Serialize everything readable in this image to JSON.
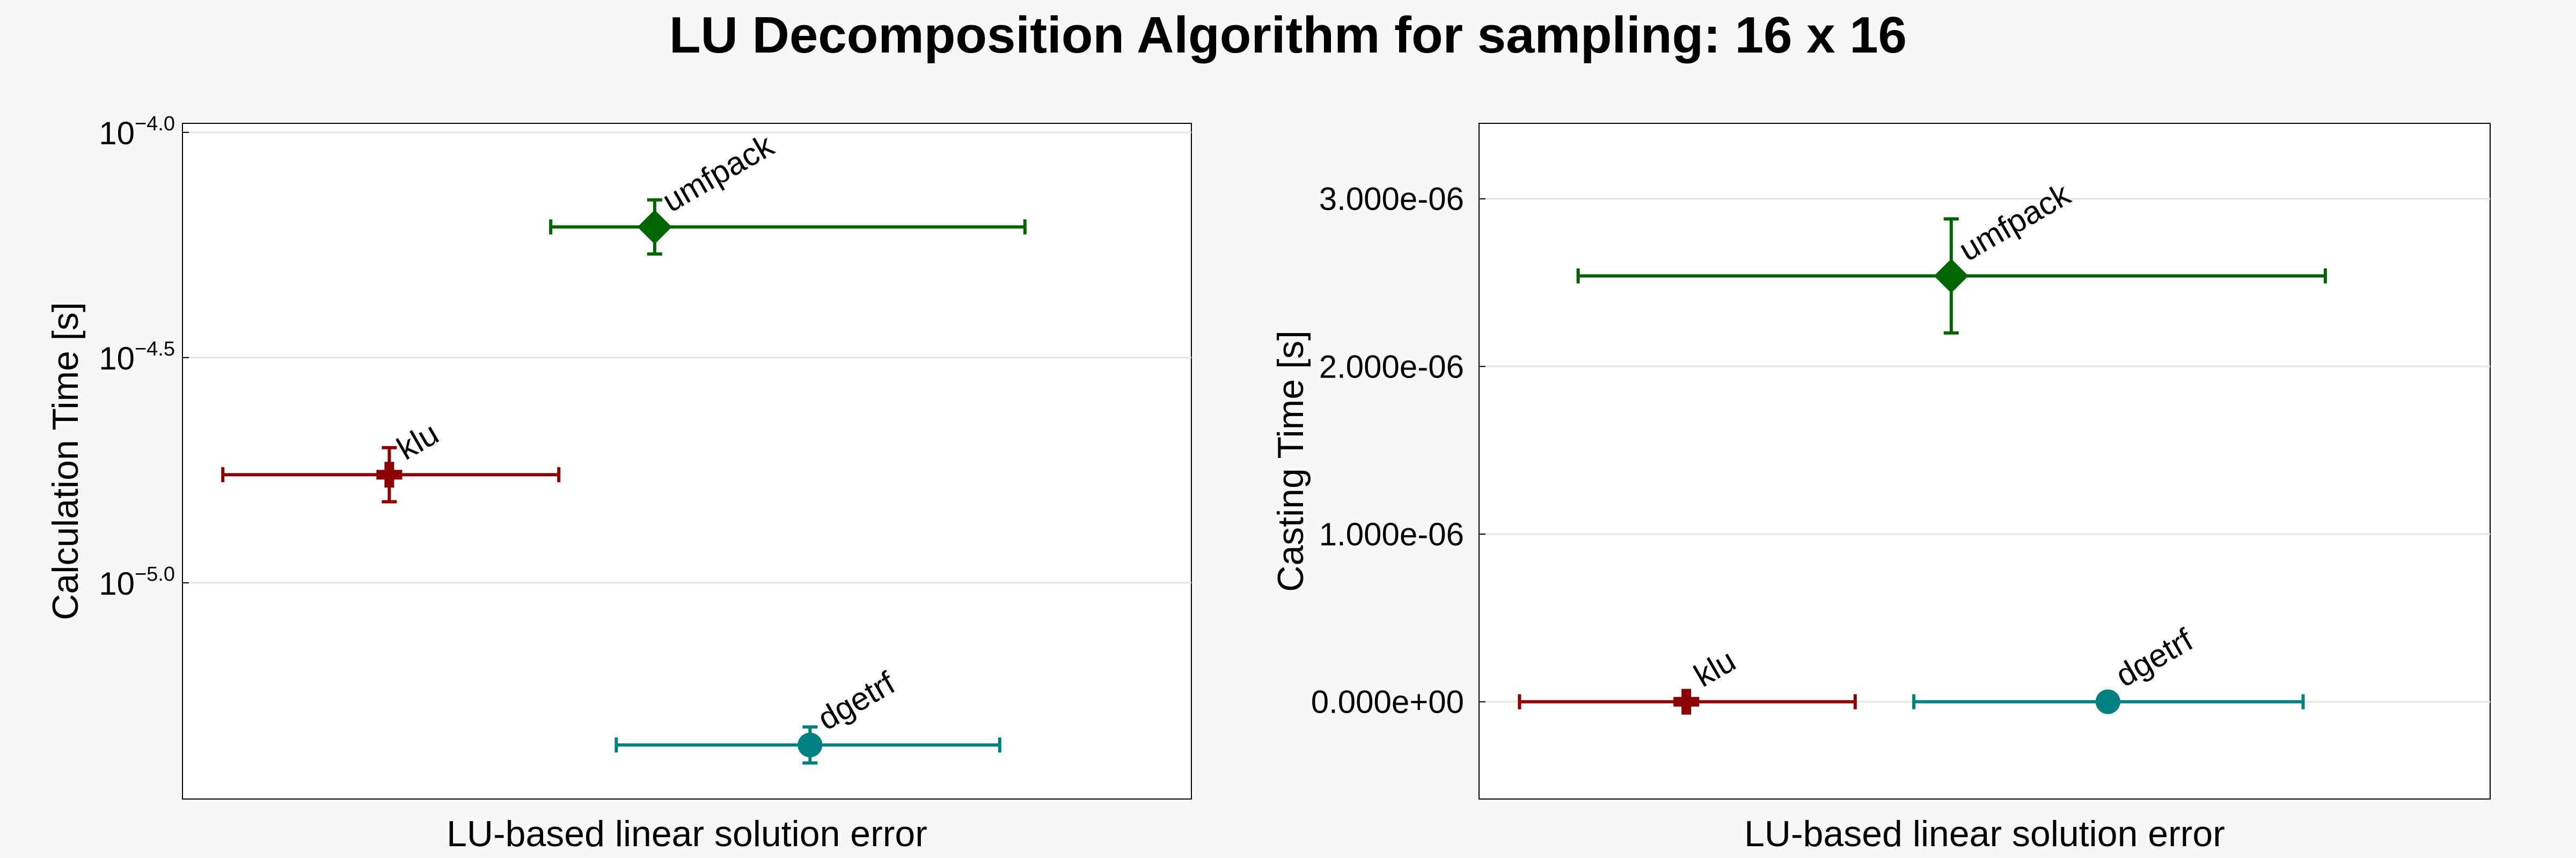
{
  "title": "LU Decomposition Algorithm for sampling: 16 x 16",
  "chart_data": [
    {
      "type": "scatter",
      "xlabel": "LU-based linear solution error",
      "ylabel": "Calculation Time [s]",
      "yscale": "log10",
      "ylim_log10": [
        -5.48,
        -3.98
      ],
      "yticks": [
        {
          "value": -4.0,
          "base": "10",
          "exp": "−4.0"
        },
        {
          "value": -4.5,
          "base": "10",
          "exp": "−4.5"
        },
        {
          "value": -5.0,
          "base": "10",
          "exp": "−5.0"
        }
      ],
      "grid": true,
      "x_tick_labels_shown": false,
      "xlim": [
        0,
        1
      ],
      "series": [
        {
          "name": "umfpack",
          "marker": "diamond",
          "color": "#006400",
          "x": 0.468,
          "xerr": [
            0.365,
            0.835
          ],
          "y_log10": -4.21,
          "yerr_log10": [
            -4.27,
            -4.15
          ]
        },
        {
          "name": "klu",
          "marker": "cross",
          "color": "#8b0000",
          "x": 0.205,
          "xerr": [
            0.04,
            0.373
          ],
          "y_log10": -4.76,
          "yerr_log10": [
            -4.82,
            -4.7
          ]
        },
        {
          "name": "dgetrf",
          "marker": "circle",
          "color": "#008080",
          "x": 0.622,
          "xerr": [
            0.43,
            0.81
          ],
          "y_log10": -5.36,
          "yerr_log10": [
            -5.4,
            -5.32
          ]
        }
      ]
    },
    {
      "type": "scatter",
      "xlabel": "LU-based linear solution error",
      "ylabel": "Casting Time [s]",
      "yscale": "linear",
      "ylim": [
        -5.8e-07,
        3.45e-06
      ],
      "yticks": [
        {
          "value": 0,
          "label": "0.000e+00"
        },
        {
          "value": 1e-06,
          "label": "1.000e-06"
        },
        {
          "value": 2e-06,
          "label": "2.000e-06"
        },
        {
          "value": 3e-06,
          "label": "3.000e-06"
        }
      ],
      "grid": true,
      "x_tick_labels_shown": false,
      "xlim": [
        0,
        1
      ],
      "series": [
        {
          "name": "umfpack",
          "marker": "diamond",
          "color": "#006400",
          "x": 0.467,
          "xerr": [
            0.098,
            0.837
          ],
          "y": 2.54e-06,
          "yerr": [
            2.2e-06,
            2.88e-06
          ]
        },
        {
          "name": "klu",
          "marker": "cross",
          "color": "#8b0000",
          "x": 0.205,
          "xerr": [
            0.04,
            0.372
          ],
          "y": 0,
          "yerr": [
            0,
            0
          ]
        },
        {
          "name": "dgetrf",
          "marker": "circle",
          "color": "#008080",
          "x": 0.622,
          "xerr": [
            0.43,
            0.815
          ],
          "y": 0,
          "yerr": [
            0,
            0
          ]
        }
      ]
    }
  ]
}
